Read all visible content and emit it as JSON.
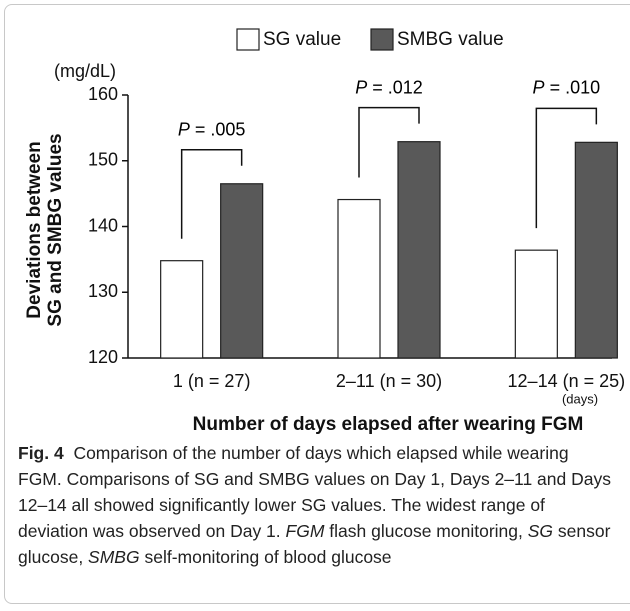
{
  "chart_data": {
    "type": "bar",
    "y_unit": "(mg/dL)",
    "ylabel": [
      "Deviations between",
      "SG and SMBG values"
    ],
    "xlabel": "Number of days elapsed after wearing FGM",
    "x_unit": "(days)",
    "categories": [
      "1 (n = 27)",
      "2–11 (n = 30)",
      "12–14 (n = 25)"
    ],
    "series": [
      {
        "name": "SG value",
        "color": "#ffffff",
        "values": [
          134.8,
          144.1,
          136.4
        ]
      },
      {
        "name": "SMBG value",
        "color": "#595959",
        "values": [
          146.5,
          152.9,
          152.8
        ]
      }
    ],
    "annotations": [
      "P = .005",
      "P = .012",
      "P = .010"
    ],
    "ylim": [
      120,
      160
    ],
    "yticks": [
      120,
      130,
      140,
      150,
      160
    ],
    "grid": false,
    "legend": "top"
  },
  "caption": {
    "label": "Fig. 4",
    "segments": [
      {
        "text": "Comparison of the number of days which elapsed while wearing FGM. Comparisons of SG and SMBG values on Day 1, Days 2–11 and Days 12–14 all showed significantly lower SG values. The widest range of deviation was observed on Day 1. ",
        "italic": false
      },
      {
        "text": "FGM",
        "italic": true
      },
      {
        "text": " flash glucose monitoring, ",
        "italic": false
      },
      {
        "text": "SG",
        "italic": true
      },
      {
        "text": " sensor glucose, ",
        "italic": false
      },
      {
        "text": "SMBG",
        "italic": true
      },
      {
        "text": " self-monitoring of blood glucose",
        "italic": false
      }
    ]
  }
}
